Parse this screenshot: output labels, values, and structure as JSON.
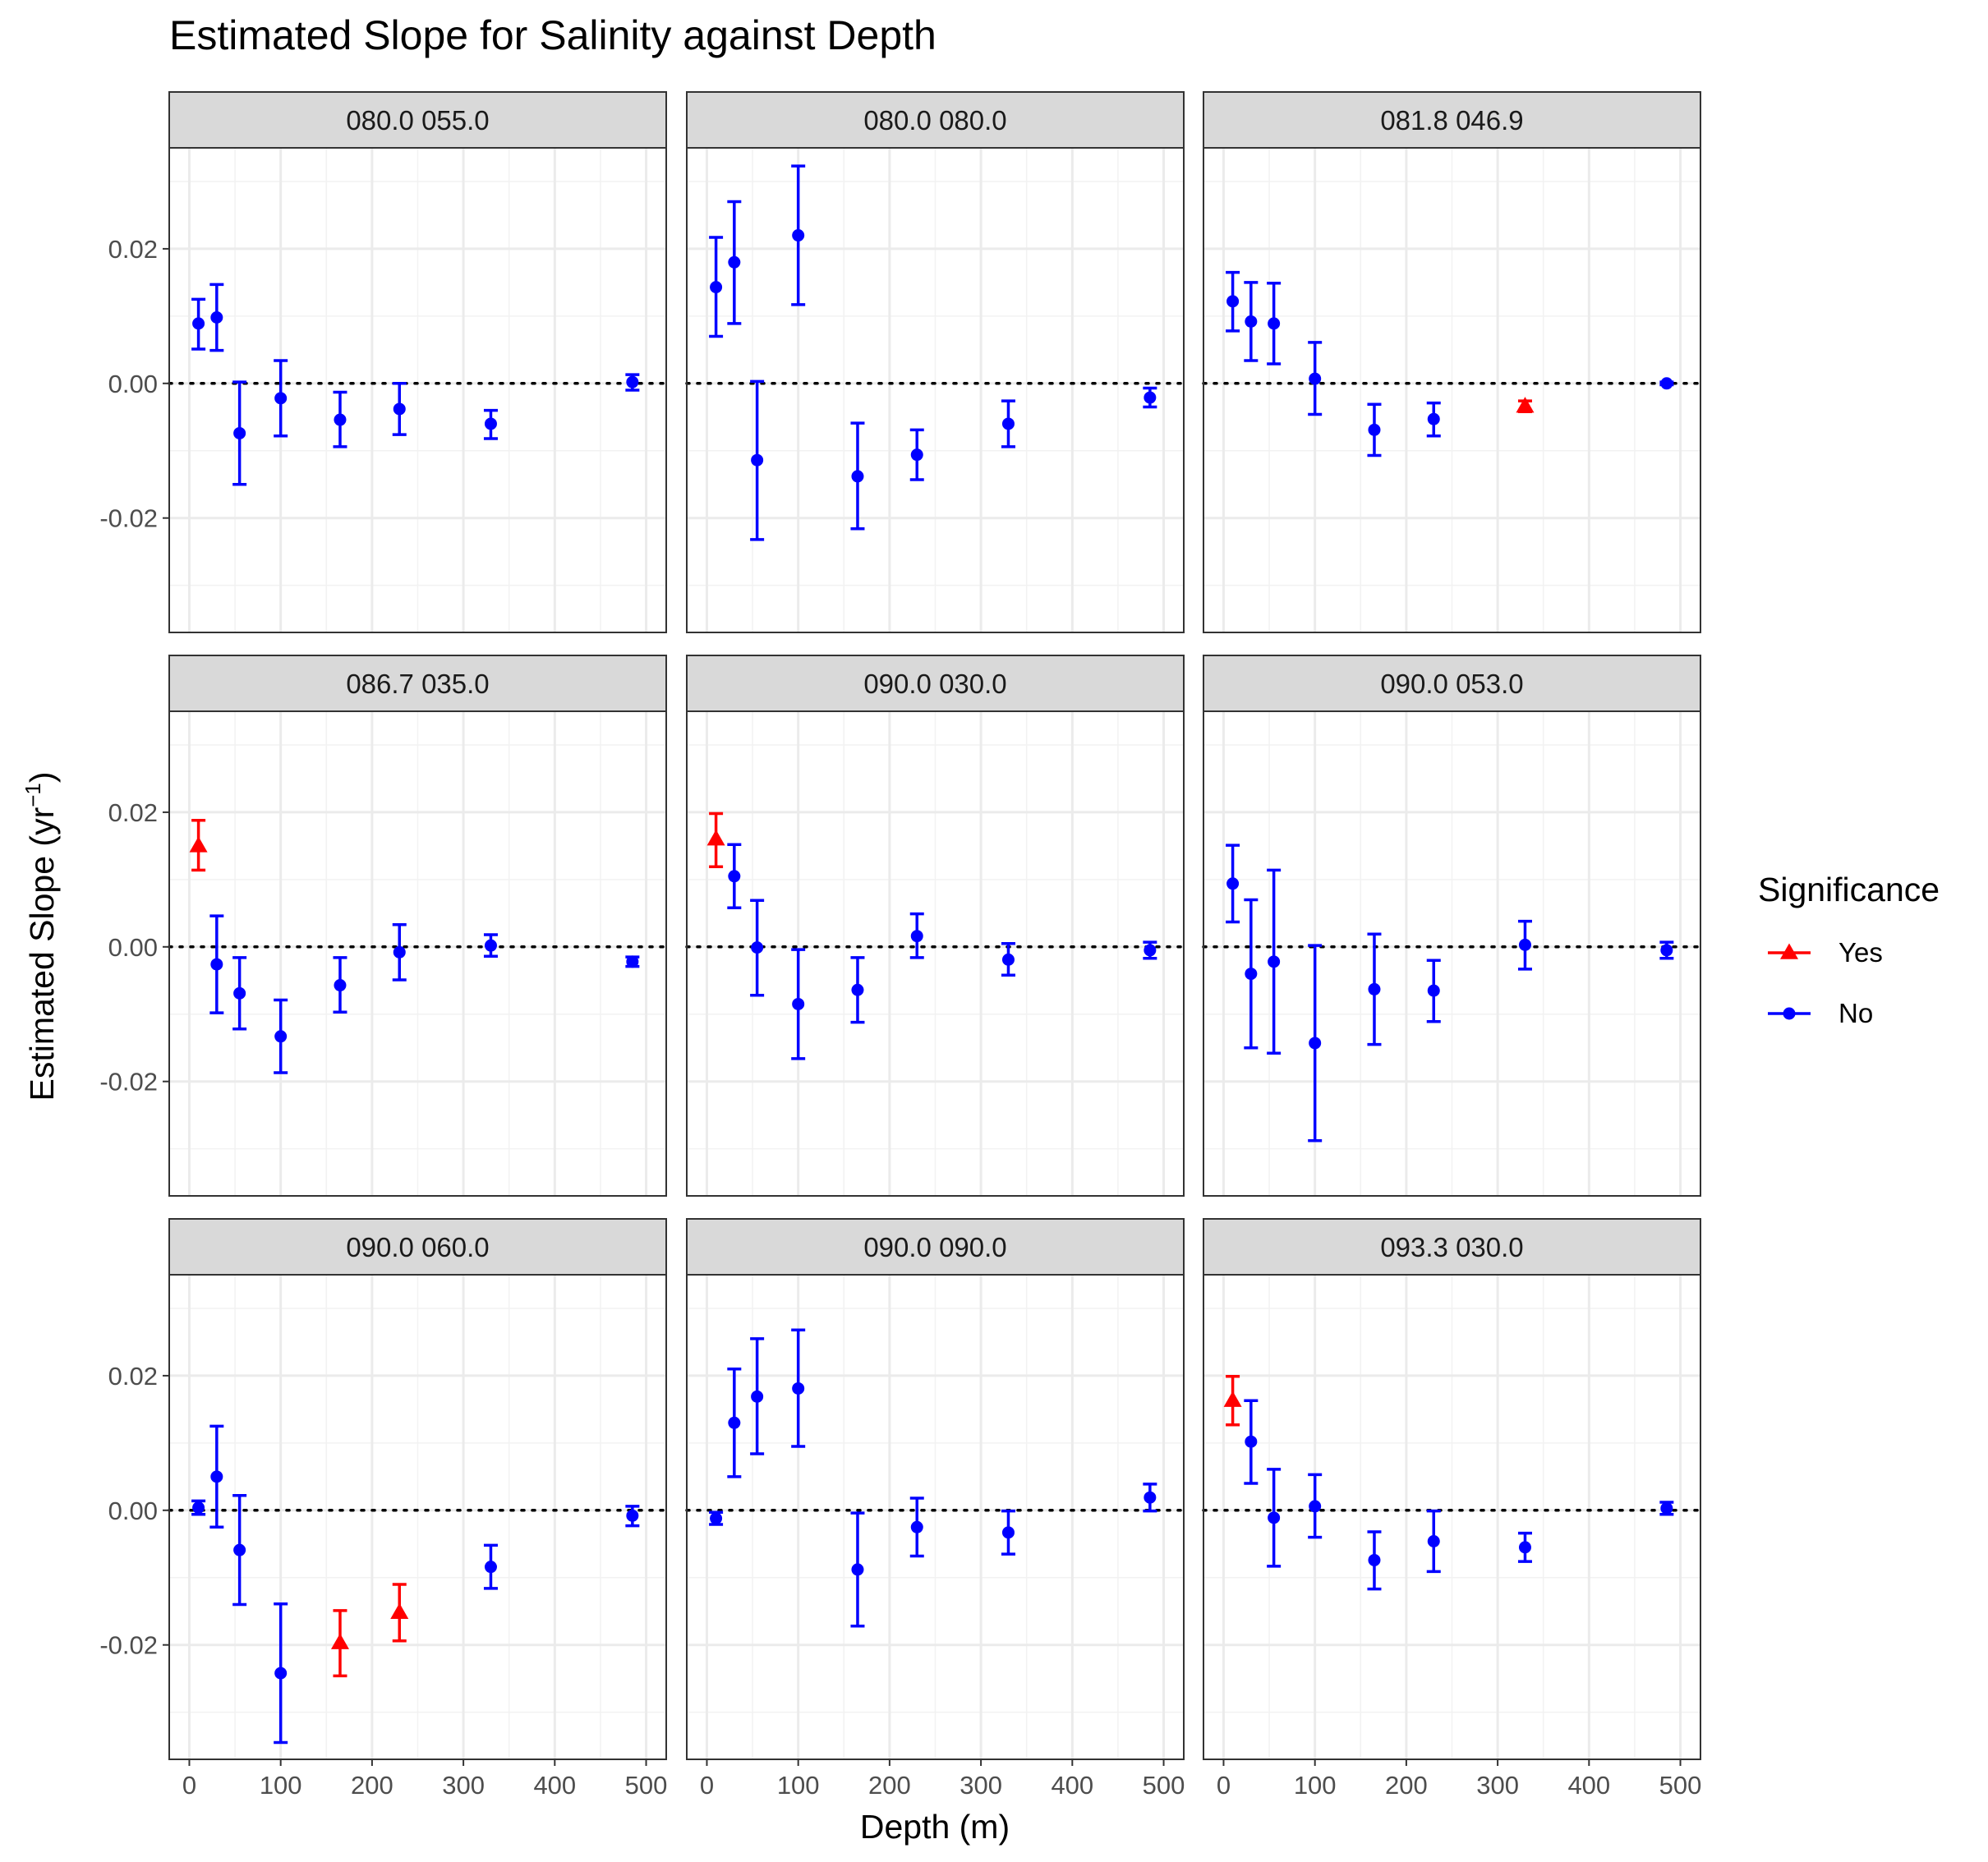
{
  "chart_data": {
    "type": "scatter",
    "subtype": "faceted point estimates with error bars",
    "title": "Estimated Slope for Salinity against Depth",
    "xlabel": "Depth (m)",
    "ylabel_main": "Estimated Slope (yr",
    "ylabel_sup": "−1",
    "ylabel_close": ")",
    "xlim": [
      -22,
      522
    ],
    "ylim": [
      -0.037,
      0.035
    ],
    "xticks": [
      0,
      100,
      200,
      300,
      400,
      500
    ],
    "xtick_labels": [
      "0",
      "100",
      "200",
      "300",
      "400",
      "500"
    ],
    "yticks": [
      -0.02,
      0.0,
      0.02
    ],
    "ytick_labels": [
      "-0.02",
      "0.00",
      "0.02"
    ],
    "reference_line": 0,
    "grid": true,
    "facet_layout": {
      "rows": 3,
      "cols": 3
    },
    "legend": {
      "title": "Significance",
      "position": "right",
      "entries": [
        {
          "label": "Yes",
          "color": "#ff0000",
          "shape": "triangle"
        },
        {
          "label": "No",
          "color": "#0000ff",
          "shape": "circle"
        }
      ]
    },
    "colors": {
      "Yes": "#ff0000",
      "No": "#0000ff"
    },
    "facets": [
      {
        "label": "080.0 055.0",
        "points": [
          {
            "x": 10,
            "y": 0.0089,
            "lo": 0.0051,
            "hi": 0.0125,
            "sig": "No"
          },
          {
            "x": 30,
            "y": 0.0098,
            "lo": 0.0049,
            "hi": 0.0147,
            "sig": "No"
          },
          {
            "x": 55,
            "y": -0.0074,
            "lo": -0.015,
            "hi": 0.0002,
            "sig": "No"
          },
          {
            "x": 100,
            "y": -0.0022,
            "lo": -0.0078,
            "hi": 0.0034,
            "sig": "No"
          },
          {
            "x": 165,
            "y": -0.0054,
            "lo": -0.0094,
            "hi": -0.0013,
            "sig": "No"
          },
          {
            "x": 230,
            "y": -0.0038,
            "lo": -0.0076,
            "hi": 0.0,
            "sig": "No"
          },
          {
            "x": 330,
            "y": -0.006,
            "lo": -0.0082,
            "hi": -0.004,
            "sig": "No"
          },
          {
            "x": 485,
            "y": 0.0002,
            "lo": -0.001,
            "hi": 0.0013,
            "sig": "No"
          }
        ]
      },
      {
        "label": "080.0 080.0",
        "points": [
          {
            "x": 10,
            "y": 0.0143,
            "lo": 0.007,
            "hi": 0.0217,
            "sig": "No"
          },
          {
            "x": 30,
            "y": 0.018,
            "lo": 0.0089,
            "hi": 0.027,
            "sig": "No"
          },
          {
            "x": 55,
            "y": -0.0114,
            "lo": -0.0232,
            "hi": 0.0003,
            "sig": "No"
          },
          {
            "x": 100,
            "y": 0.022,
            "lo": 0.0117,
            "hi": 0.0323,
            "sig": "No"
          },
          {
            "x": 165,
            "y": -0.0138,
            "lo": -0.0216,
            "hi": -0.0059,
            "sig": "No"
          },
          {
            "x": 230,
            "y": -0.0106,
            "lo": -0.0143,
            "hi": -0.0069,
            "sig": "No"
          },
          {
            "x": 330,
            "y": -0.006,
            "lo": -0.0094,
            "hi": -0.0026,
            "sig": "No"
          },
          {
            "x": 485,
            "y": -0.0021,
            "lo": -0.0035,
            "hi": -0.0007,
            "sig": "No"
          }
        ]
      },
      {
        "label": "081.8 046.9",
        "points": [
          {
            "x": 10,
            "y": 0.0122,
            "lo": 0.0078,
            "hi": 0.0165,
            "sig": "No"
          },
          {
            "x": 30,
            "y": 0.0092,
            "lo": 0.0034,
            "hi": 0.015,
            "sig": "No"
          },
          {
            "x": 55,
            "y": 0.0089,
            "lo": 0.0029,
            "hi": 0.0149,
            "sig": "No"
          },
          {
            "x": 100,
            "y": 0.0007,
            "lo": -0.0046,
            "hi": 0.0061,
            "sig": "No"
          },
          {
            "x": 165,
            "y": -0.0069,
            "lo": -0.0107,
            "hi": -0.0031,
            "sig": "No"
          },
          {
            "x": 230,
            "y": -0.0053,
            "lo": -0.0078,
            "hi": -0.0029,
            "sig": "No"
          },
          {
            "x": 330,
            "y": -0.0034,
            "lo": -0.0042,
            "hi": -0.0026,
            "sig": "Yes"
          },
          {
            "x": 485,
            "y": 0.0,
            "lo": -0.0002,
            "hi": 0.0002,
            "sig": "No"
          }
        ]
      },
      {
        "label": "086.7 035.0",
        "points": [
          {
            "x": 10,
            "y": 0.015,
            "lo": 0.0114,
            "hi": 0.0188,
            "sig": "Yes"
          },
          {
            "x": 30,
            "y": -0.0026,
            "lo": -0.0098,
            "hi": 0.0046,
            "sig": "No"
          },
          {
            "x": 55,
            "y": -0.0069,
            "lo": -0.0122,
            "hi": -0.0016,
            "sig": "No"
          },
          {
            "x": 100,
            "y": -0.0133,
            "lo": -0.0187,
            "hi": -0.0079,
            "sig": "No"
          },
          {
            "x": 165,
            "y": -0.0057,
            "lo": -0.0097,
            "hi": -0.0016,
            "sig": "No"
          },
          {
            "x": 230,
            "y": -0.0008,
            "lo": -0.0049,
            "hi": 0.0033,
            "sig": "No"
          },
          {
            "x": 330,
            "y": 0.0002,
            "lo": -0.0014,
            "hi": 0.0018,
            "sig": "No"
          },
          {
            "x": 485,
            "y": -0.0022,
            "lo": -0.0029,
            "hi": -0.0015,
            "sig": "No"
          }
        ]
      },
      {
        "label": "090.0 030.0",
        "points": [
          {
            "x": 10,
            "y": 0.016,
            "lo": 0.0119,
            "hi": 0.0198,
            "sig": "Yes"
          },
          {
            "x": 30,
            "y": 0.0105,
            "lo": 0.0058,
            "hi": 0.0152,
            "sig": "No"
          },
          {
            "x": 55,
            "y": -0.0001,
            "lo": -0.0072,
            "hi": 0.0069,
            "sig": "No"
          },
          {
            "x": 100,
            "y": -0.0085,
            "lo": -0.0166,
            "hi": -0.0004,
            "sig": "No"
          },
          {
            "x": 165,
            "y": -0.0064,
            "lo": -0.0112,
            "hi": -0.0016,
            "sig": "No"
          },
          {
            "x": 230,
            "y": 0.0016,
            "lo": -0.0016,
            "hi": 0.0049,
            "sig": "No"
          },
          {
            "x": 330,
            "y": -0.0019,
            "lo": -0.0042,
            "hi": 0.0005,
            "sig": "No"
          },
          {
            "x": 485,
            "y": -0.0005,
            "lo": -0.0017,
            "hi": 0.0007,
            "sig": "No"
          }
        ]
      },
      {
        "label": "090.0 053.0",
        "points": [
          {
            "x": 10,
            "y": 0.0094,
            "lo": 0.0037,
            "hi": 0.0151,
            "sig": "No"
          },
          {
            "x": 30,
            "y": -0.004,
            "lo": -0.015,
            "hi": 0.007,
            "sig": "No"
          },
          {
            "x": 55,
            "y": -0.0022,
            "lo": -0.0158,
            "hi": 0.0114,
            "sig": "No"
          },
          {
            "x": 100,
            "y": -0.0143,
            "lo": -0.0288,
            "hi": 0.0002,
            "sig": "No"
          },
          {
            "x": 165,
            "y": -0.0063,
            "lo": -0.0145,
            "hi": 0.0019,
            "sig": "No"
          },
          {
            "x": 230,
            "y": -0.0065,
            "lo": -0.0111,
            "hi": -0.002,
            "sig": "No"
          },
          {
            "x": 330,
            "y": 0.0003,
            "lo": -0.0033,
            "hi": 0.0038,
            "sig": "No"
          },
          {
            "x": 485,
            "y": -0.0005,
            "lo": -0.0017,
            "hi": 0.0007,
            "sig": "No"
          }
        ]
      },
      {
        "label": "090.0 060.0",
        "points": [
          {
            "x": 10,
            "y": 0.0004,
            "lo": -0.0006,
            "hi": 0.0014,
            "sig": "No"
          },
          {
            "x": 30,
            "y": 0.005,
            "lo": -0.0025,
            "hi": 0.0125,
            "sig": "No"
          },
          {
            "x": 55,
            "y": -0.0059,
            "lo": -0.014,
            "hi": 0.0022,
            "sig": "No"
          },
          {
            "x": 100,
            "y": -0.0242,
            "lo": -0.0345,
            "hi": -0.0139,
            "sig": "No"
          },
          {
            "x": 165,
            "y": -0.0197,
            "lo": -0.0246,
            "hi": -0.0149,
            "sig": "Yes"
          },
          {
            "x": 230,
            "y": -0.0152,
            "lo": -0.0194,
            "hi": -0.011,
            "sig": "Yes"
          },
          {
            "x": 330,
            "y": -0.0084,
            "lo": -0.0116,
            "hi": -0.0052,
            "sig": "No"
          },
          {
            "x": 485,
            "y": -0.0008,
            "lo": -0.0023,
            "hi": 0.0006,
            "sig": "No"
          }
        ]
      },
      {
        "label": "090.0 090.0",
        "points": [
          {
            "x": 10,
            "y": -0.0012,
            "lo": -0.0021,
            "hi": -0.0003,
            "sig": "No"
          },
          {
            "x": 30,
            "y": 0.013,
            "lo": 0.005,
            "hi": 0.021,
            "sig": "No"
          },
          {
            "x": 55,
            "y": 0.0169,
            "lo": 0.0084,
            "hi": 0.0255,
            "sig": "No"
          },
          {
            "x": 100,
            "y": 0.0181,
            "lo": 0.0095,
            "hi": 0.0268,
            "sig": "No"
          },
          {
            "x": 165,
            "y": -0.0088,
            "lo": -0.0172,
            "hi": -0.0004,
            "sig": "No"
          },
          {
            "x": 230,
            "y": -0.0025,
            "lo": -0.0068,
            "hi": 0.0018,
            "sig": "No"
          },
          {
            "x": 330,
            "y": -0.0033,
            "lo": -0.0065,
            "hi": -0.0001,
            "sig": "No"
          },
          {
            "x": 485,
            "y": 0.0019,
            "lo": -0.0001,
            "hi": 0.0039,
            "sig": "No"
          }
        ]
      },
      {
        "label": "093.3 030.0",
        "points": [
          {
            "x": 10,
            "y": 0.0163,
            "lo": 0.0127,
            "hi": 0.0199,
            "sig": "Yes"
          },
          {
            "x": 30,
            "y": 0.0102,
            "lo": 0.004,
            "hi": 0.0163,
            "sig": "No"
          },
          {
            "x": 55,
            "y": -0.0011,
            "lo": -0.0083,
            "hi": 0.0061,
            "sig": "No"
          },
          {
            "x": 100,
            "y": 0.0006,
            "lo": -0.004,
            "hi": 0.0053,
            "sig": "No"
          },
          {
            "x": 165,
            "y": -0.0074,
            "lo": -0.0117,
            "hi": -0.0032,
            "sig": "No"
          },
          {
            "x": 230,
            "y": -0.0046,
            "lo": -0.0091,
            "hi": -0.0001,
            "sig": "No"
          },
          {
            "x": 330,
            "y": -0.0055,
            "lo": -0.0076,
            "hi": -0.0034,
            "sig": "No"
          },
          {
            "x": 485,
            "y": 0.0003,
            "lo": -0.0006,
            "hi": 0.0012,
            "sig": "No"
          }
        ]
      }
    ]
  }
}
